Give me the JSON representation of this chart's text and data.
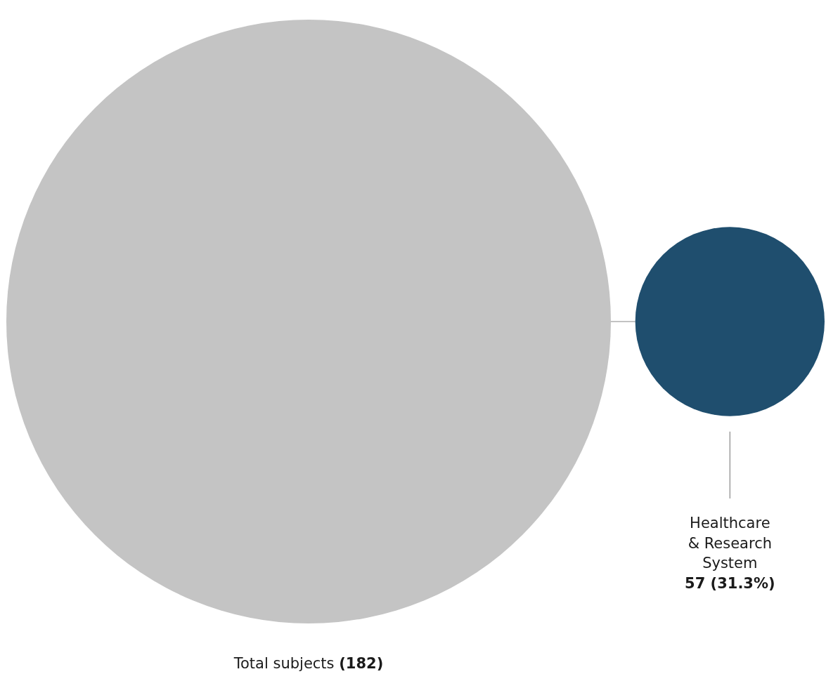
{
  "chart_data": {
    "type": "other",
    "categories": [
      "Total subjects",
      "Healthcare & Research System"
    ],
    "values": [
      182,
      57
    ],
    "value_labels": [
      "(182)",
      "57 (31.3%)"
    ],
    "colors": [
      "#c4c4c4",
      "#1f4e6e"
    ]
  }
}
